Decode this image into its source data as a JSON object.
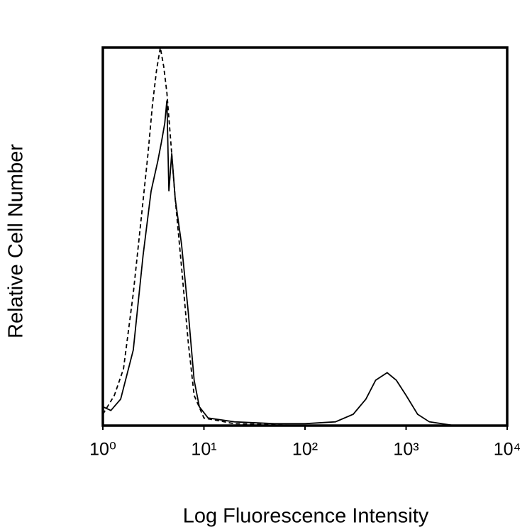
{
  "chart_data": {
    "type": "line",
    "xlabel": "Log Fluorescence Intensity",
    "ylabel": "Relative Cell Number",
    "xscale": "log",
    "xlim": [
      1,
      10000
    ],
    "xticks": [
      {
        "value": 1,
        "label": "10⁰"
      },
      {
        "value": 10,
        "label": "10¹"
      },
      {
        "value": 100,
        "label": "10²"
      },
      {
        "value": 1000,
        "label": "10³"
      },
      {
        "value": 10000,
        "label": "10⁴"
      }
    ],
    "ylim": [
      0,
      100
    ],
    "grid": false,
    "series": [
      {
        "color": "#000000",
        "style": "solid",
        "x": [
          1,
          1.2,
          1.5,
          2,
          2.5,
          3,
          3.5,
          3.8,
          4.1,
          4.3,
          4.5,
          4.8,
          5.2,
          6,
          7,
          8,
          9,
          11,
          20,
          50,
          100,
          200,
          300,
          400,
          500,
          650,
          800,
          1000,
          1300,
          1700,
          3000,
          10000
        ],
        "values": [
          5,
          4,
          7,
          20,
          45,
          62,
          70,
          75,
          80,
          86,
          62,
          72,
          60,
          48,
          30,
          12,
          5,
          2,
          1,
          0.5,
          0.5,
          1,
          3,
          7,
          12,
          14,
          12,
          8,
          3,
          1,
          0,
          0
        ]
      },
      {
        "color": "#000000",
        "style": "dashed",
        "x": [
          1,
          1.3,
          1.6,
          2,
          2.4,
          2.8,
          3.1,
          3.4,
          3.7,
          4,
          4.3,
          4.7,
          5.2,
          6,
          7,
          8,
          10,
          20,
          100,
          1000,
          10000
        ],
        "values": [
          3,
          8,
          15,
          35,
          55,
          72,
          85,
          94,
          100,
          95,
          88,
          75,
          60,
          42,
          22,
          8,
          2,
          0.5,
          0,
          0,
          0
        ]
      }
    ]
  }
}
